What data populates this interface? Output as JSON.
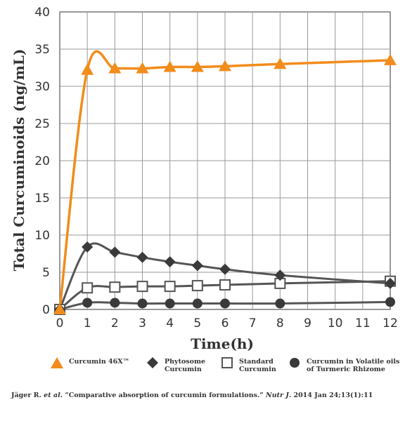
{
  "chart_data": {
    "type": "line",
    "ylabel": "Total Curcuminoids (ng/mL)",
    "xlabel": "Time(h)",
    "xlim": [
      0,
      12
    ],
    "ylim": [
      0,
      40
    ],
    "xticks": [
      "0",
      "1",
      "2",
      "3",
      "4",
      "5",
      "6",
      "7",
      "8",
      "9",
      "10",
      "11",
      "12"
    ],
    "yticks": [
      "0",
      "5",
      "10",
      "15",
      "20",
      "25",
      "30",
      "35",
      "40"
    ],
    "grid": true,
    "legend_position": "bottom",
    "series": [
      {
        "name": "Curcumin 46X™",
        "marker": "triangle",
        "color": "#F28C1B",
        "markerColor": "#F28C1B",
        "points": [
          [
            0,
            0
          ],
          [
            1,
            32.2
          ],
          [
            2,
            32.4
          ],
          [
            3,
            32.4
          ],
          [
            4,
            32.6
          ],
          [
            5,
            32.6
          ],
          [
            6,
            32.7
          ],
          [
            8,
            33.0
          ],
          [
            12,
            33.5
          ]
        ]
      },
      {
        "name": "Phytosome Curcumin",
        "marker": "diamond",
        "color": "#555555",
        "markerColor": "#3a3a3a",
        "points": [
          [
            0,
            0
          ],
          [
            1,
            8.4
          ],
          [
            2,
            7.7
          ],
          [
            3,
            7.0
          ],
          [
            4,
            6.4
          ],
          [
            5,
            5.9
          ],
          [
            6,
            5.4
          ],
          [
            8,
            4.6
          ],
          [
            12,
            3.5
          ]
        ]
      },
      {
        "name": "Standard Curcumin",
        "marker": "square",
        "color": "#555555",
        "markerColor": "#555555",
        "points": [
          [
            0,
            0
          ],
          [
            1,
            2.9
          ],
          [
            2,
            3.0
          ],
          [
            3,
            3.1
          ],
          [
            4,
            3.1
          ],
          [
            5,
            3.2
          ],
          [
            6,
            3.3
          ],
          [
            8,
            3.5
          ],
          [
            12,
            3.8
          ]
        ]
      },
      {
        "name": "Curcumin in Volatile oils of Turmeric Rhizome",
        "marker": "circle",
        "color": "#555555",
        "markerColor": "#3a3a3a",
        "points": [
          [
            0,
            0
          ],
          [
            1,
            0.9
          ],
          [
            2,
            0.9
          ],
          [
            3,
            0.8
          ],
          [
            4,
            0.8
          ],
          [
            5,
            0.8
          ],
          [
            6,
            0.8
          ],
          [
            8,
            0.8
          ],
          [
            12,
            1.0
          ]
        ]
      }
    ]
  },
  "legend": [
    {
      "label": "Curcumin 46X™",
      "marker": "triangle"
    },
    {
      "label": "Phytosome\nCurcumin",
      "marker": "diamond"
    },
    {
      "label": "Standard\nCurcumin",
      "marker": "square"
    },
    {
      "label": "Curcumin in Volatile oils\nof Turmeric Rhizome",
      "marker": "circle"
    }
  ],
  "citation": {
    "author": "Jäger R. ",
    "etal": "et al",
    "mid": ". “Comparative absorption of curcumin formulations.” ",
    "journal": "Nutr J",
    "tail": ". 2014 Jan 24;13(1):11"
  }
}
